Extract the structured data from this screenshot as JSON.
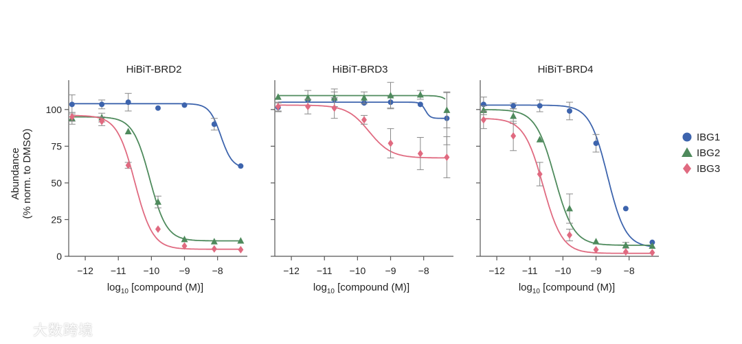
{
  "chart_data": [
    {
      "type": "line",
      "title": "HiBiT-BRD2",
      "xlabel": "log10 [compound (M)]",
      "ylabel": "Abundance",
      "ylabel2": "(% norm. to DMSO)",
      "xlim": [
        -12.5,
        -7.1
      ],
      "ylim": [
        0,
        120
      ],
      "xticks": [
        -12,
        -11,
        -10,
        -9,
        -8
      ],
      "yticks": [
        0,
        25,
        50,
        75,
        100
      ],
      "series": [
        {
          "name": "IBG1",
          "color": "#3d64ad",
          "marker": "circle",
          "x": [
            -12.4,
            -11.5,
            -10.7,
            -9.8,
            -9.0,
            -8.1,
            -7.3
          ],
          "y": [
            103.5,
            103.5,
            105,
            101,
            103,
            90,
            61.5
          ],
          "err": [
            6.5,
            3,
            6,
            0,
            0,
            4,
            0
          ],
          "curve": {
            "top": 104,
            "bottom": 60,
            "logIC50": -7.9,
            "hill": 2.5
          }
        },
        {
          "name": "IBG2",
          "color": "#4e8a5c",
          "marker": "triangle",
          "x": [
            -12.4,
            -11.5,
            -10.7,
            -9.8,
            -9.0,
            -8.1,
            -7.3
          ],
          "y": [
            94,
            94.5,
            85,
            37,
            11.5,
            10,
            10.5
          ],
          "err": [
            4,
            3,
            0,
            4,
            0,
            0,
            0
          ],
          "curve": {
            "top": 95,
            "bottom": 10.5,
            "logIC50": -10.05,
            "hill": 1.7
          }
        },
        {
          "name": "IBG3",
          "color": "#e06a80",
          "marker": "diamond",
          "x": [
            -12.4,
            -11.5,
            -10.7,
            -9.8,
            -9.0,
            -8.1,
            -7.3
          ],
          "y": [
            95,
            92,
            62,
            18.5,
            7,
            5,
            4.5
          ],
          "err": [
            3,
            3,
            2,
            0,
            0,
            0,
            0
          ],
          "curve": {
            "top": 96,
            "bottom": 4.8,
            "logIC50": -10.5,
            "hill": 1.6
          }
        }
      ]
    },
    {
      "type": "line",
      "title": "HiBiT-BRD3",
      "xlabel": "log10 [compound (M)]",
      "xlim": [
        -12.5,
        -7.1
      ],
      "ylim": [
        0,
        120
      ],
      "xticks": [
        -12,
        -11,
        -10,
        -9,
        -8
      ],
      "yticks": [
        0,
        25,
        50,
        75,
        100
      ],
      "series": [
        {
          "name": "IBG1",
          "color": "#3d64ad",
          "marker": "circle",
          "x": [
            -12.4,
            -11.5,
            -10.7,
            -9.8,
            -9.0,
            -8.1,
            -7.3
          ],
          "y": [
            101.5,
            106.5,
            107,
            104.5,
            105,
            103.5,
            94
          ],
          "err": [
            3,
            0,
            5,
            0,
            4,
            0,
            18
          ],
          "curve": {
            "top": 105,
            "bottom": 94,
            "logIC50": -7.95,
            "hill": 6
          }
        },
        {
          "name": "IBG2",
          "color": "#4e8a5c",
          "marker": "triangle",
          "x": [
            -12.4,
            -11.5,
            -10.7,
            -9.8,
            -9.0,
            -8.1,
            -7.3
          ],
          "y": [
            108.5,
            108,
            108,
            108,
            109.5,
            110,
            99.5
          ],
          "err": [
            0,
            5,
            6,
            4,
            9,
            3,
            12
          ],
          "curve": {
            "top": 109.5,
            "bottom": 0,
            "logIC50": -6.8,
            "hill": 3
          }
        },
        {
          "name": "IBG3",
          "color": "#e06a80",
          "marker": "diamond",
          "x": [
            -12.4,
            -11.5,
            -10.7,
            -9.8,
            -9.0,
            -8.1,
            -7.3
          ],
          "y": [
            102,
            102,
            101,
            93,
            77,
            70,
            67.5
          ],
          "err": [
            3,
            5,
            7,
            3,
            10,
            11,
            14
          ],
          "curve": {
            "top": 103,
            "bottom": 67,
            "logIC50": -9.65,
            "hill": 1.3
          }
        }
      ]
    },
    {
      "type": "line",
      "title": "HiBiT-BRD4",
      "xlabel": "log10 [compound (M)]",
      "xlim": [
        -12.5,
        -7.1
      ],
      "ylim": [
        0,
        120
      ],
      "xticks": [
        -12,
        -11,
        -10,
        -9,
        -8
      ],
      "yticks": [
        0,
        25,
        50,
        75,
        100
      ],
      "series": [
        {
          "name": "IBG1",
          "color": "#3d64ad",
          "marker": "circle",
          "x": [
            -12.4,
            -11.5,
            -10.7,
            -9.8,
            -9.0,
            -8.1,
            -7.3
          ],
          "y": [
            103.5,
            102.5,
            102.5,
            99,
            77,
            32.5,
            9.5
          ],
          "err": [
            5,
            2,
            4,
            6,
            6,
            0,
            0
          ],
          "curve": {
            "top": 103,
            "bottom": 6,
            "logIC50": -8.65,
            "hill": 1.6
          }
        },
        {
          "name": "IBG2",
          "color": "#4e8a5c",
          "marker": "triangle",
          "x": [
            -12.4,
            -11.5,
            -10.7,
            -9.8,
            -9.0,
            -8.1,
            -7.3
          ],
          "y": [
            99.5,
            95.5,
            79.5,
            32.5,
            10,
            7.5,
            7
          ],
          "err": [
            3,
            5,
            0,
            10,
            0,
            2,
            0
          ],
          "curve": {
            "top": 100,
            "bottom": 7.5,
            "logIC50": -10.25,
            "hill": 1.5
          }
        },
        {
          "name": "IBG3",
          "color": "#e06a80",
          "marker": "diamond",
          "x": [
            -12.4,
            -11.5,
            -10.7,
            -9.8,
            -9.0,
            -8.1,
            -7.3
          ],
          "y": [
            93,
            82,
            56,
            14.5,
            4.5,
            3,
            2.5
          ],
          "err": [
            6,
            10,
            8,
            4,
            0,
            0,
            0
          ],
          "curve": {
            "top": 94,
            "bottom": 2,
            "logIC50": -10.6,
            "hill": 1.5
          }
        }
      ]
    }
  ],
  "legend": {
    "items": [
      "IBG1",
      "IBG2",
      "IBG3"
    ],
    "position": "right"
  },
  "watermark": {
    "text": "大数跨境"
  }
}
